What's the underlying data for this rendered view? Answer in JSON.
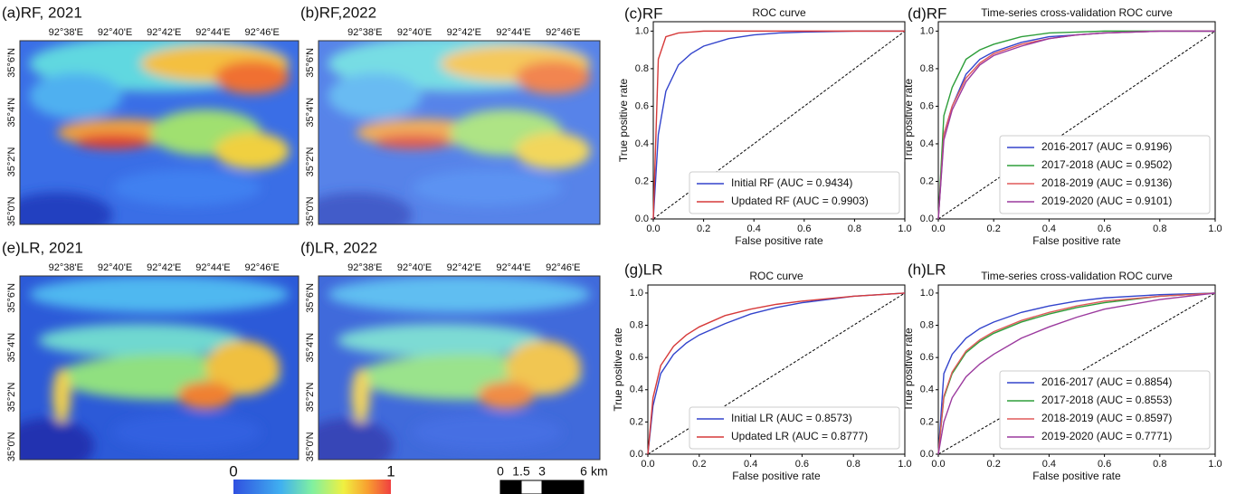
{
  "maps": [
    {
      "label": "(a)RF, 2021",
      "lon_ticks": [
        "92°38'E",
        "92°40'E",
        "92°42'E",
        "92°44'E",
        "92°46'E"
      ],
      "lat_ticks": [
        "35°6'N",
        "35°4'N",
        "35°2'N",
        "35°0'N"
      ]
    },
    {
      "label": "(b)RF,2022",
      "lon_ticks": [
        "92°38'E",
        "92°40'E",
        "92°42'E",
        "92°44'E",
        "92°46'E"
      ],
      "lat_ticks": [
        "35°6'N",
        "35°4'N",
        "35°2'N",
        "35°0'N"
      ]
    },
    {
      "label": "(e)LR, 2021",
      "lon_ticks": [
        "92°38'E",
        "92°40'E",
        "92°42'E",
        "92°44'E",
        "92°46'E"
      ],
      "lat_ticks": [
        "35°6'N",
        "35°4'N",
        "35°2'N",
        "35°0'N"
      ]
    },
    {
      "label": "(f)LR, 2022",
      "lon_ticks": [
        "92°38'E",
        "92°40'E",
        "92°42'E",
        "92°44'E",
        "92°46'E"
      ],
      "lat_ticks": [
        "35°6'N",
        "35°4'N",
        "35°2'N",
        "35°0'N"
      ]
    }
  ],
  "colorbar": {
    "lim": [
      0,
      1
    ],
    "ticks": [
      0,
      1
    ]
  },
  "scalebar": {
    "ticks": [
      0,
      1.5,
      3,
      6
    ],
    "unit": "km"
  },
  "chart_data": [
    {
      "type": "line",
      "panel_label": "(c)RF",
      "title": "ROC curve",
      "x_label": "False positive rate",
      "y_label": "True positive rate",
      "xlim": [
        0,
        1
      ],
      "ylim": [
        0,
        1.05
      ],
      "xticks": [
        {
          "value": 0,
          "label": "0.0"
        },
        0.2,
        0.4,
        0.6,
        0.8,
        {
          "value": 1,
          "label": "1.0"
        }
      ],
      "yticks": [
        {
          "value": 0,
          "label": "0.0"
        },
        0.2,
        0.4,
        0.6,
        0.8,
        {
          "value": 1,
          "label": "1.0"
        }
      ],
      "series": [
        {
          "name": "Initial RF (AUC = 0.9434)",
          "color": "#3344cc",
          "x": [
            0,
            0.02,
            0.05,
            0.1,
            0.15,
            0.2,
            0.3,
            0.4,
            0.5,
            0.6,
            0.8,
            1
          ],
          "values": [
            0,
            0.45,
            0.68,
            0.82,
            0.88,
            0.92,
            0.96,
            0.98,
            0.99,
            0.995,
            1,
            1
          ]
        },
        {
          "name": "Updated RF (AUC = 0.9903)",
          "color": "#d63a3a",
          "x": [
            0,
            0.02,
            0.05,
            0.1,
            0.15,
            0.2,
            0.3,
            0.4,
            0.5,
            0.6,
            0.8,
            1
          ],
          "values": [
            0,
            0.85,
            0.97,
            0.99,
            0.995,
            1,
            1,
            1,
            1,
            1,
            1,
            1
          ]
        }
      ]
    },
    {
      "type": "line",
      "panel_label": "(d)RF",
      "title": "Time-series cross-validation ROC curve",
      "x_label": "False positive rate",
      "y_label": "True positive rate",
      "xlim": [
        0,
        1
      ],
      "ylim": [
        0,
        1.05
      ],
      "xticks": [
        {
          "value": 0,
          "label": "0.0"
        },
        0.2,
        0.4,
        0.6,
        0.8,
        {
          "value": 1,
          "label": "1.0"
        }
      ],
      "yticks": [
        {
          "value": 0,
          "label": "0.0"
        },
        0.2,
        0.4,
        0.6,
        0.8,
        {
          "value": 1,
          "label": "1.0"
        }
      ],
      "series": [
        {
          "name": "2016-2017 (AUC = 0.9196)",
          "color": "#3344cc",
          "x": [
            0,
            0.02,
            0.05,
            0.1,
            0.15,
            0.2,
            0.3,
            0.4,
            0.5,
            0.6,
            0.8,
            1
          ],
          "values": [
            0,
            0.45,
            0.6,
            0.77,
            0.85,
            0.89,
            0.94,
            0.97,
            0.98,
            0.99,
            1,
            1
          ]
        },
        {
          "name": "2017-2018 (AUC = 0.9502)",
          "color": "#2e9e3a",
          "x": [
            0,
            0.02,
            0.05,
            0.1,
            0.15,
            0.2,
            0.3,
            0.4,
            0.5,
            0.6,
            0.8,
            1
          ],
          "values": [
            0,
            0.55,
            0.7,
            0.85,
            0.9,
            0.93,
            0.97,
            0.99,
            0.995,
            1,
            1,
            1
          ]
        },
        {
          "name": "2018-2019 (AUC = 0.9136)",
          "color": "#e05a5a",
          "x": [
            0,
            0.02,
            0.05,
            0.1,
            0.15,
            0.2,
            0.3,
            0.4,
            0.5,
            0.6,
            0.8,
            1
          ],
          "values": [
            0,
            0.45,
            0.6,
            0.75,
            0.83,
            0.88,
            0.93,
            0.96,
            0.98,
            0.99,
            1,
            1
          ]
        },
        {
          "name": "2019-2020 (AUC = 0.9101)",
          "color": "#9b3a9e",
          "x": [
            0,
            0.02,
            0.05,
            0.1,
            0.15,
            0.2,
            0.3,
            0.4,
            0.5,
            0.6,
            0.8,
            1
          ],
          "values": [
            0,
            0.42,
            0.58,
            0.73,
            0.82,
            0.87,
            0.92,
            0.96,
            0.98,
            0.99,
            1,
            1
          ]
        }
      ]
    },
    {
      "type": "line",
      "panel_label": "(g)LR",
      "title": "ROC curve",
      "x_label": "False positive rate",
      "y_label": "True positive rate",
      "xlim": [
        0,
        1
      ],
      "ylim": [
        0,
        1.05
      ],
      "xticks": [
        {
          "value": 0,
          "label": "0.0"
        },
        0.2,
        0.4,
        0.6,
        0.8,
        {
          "value": 1,
          "label": "1.0"
        }
      ],
      "yticks": [
        {
          "value": 0,
          "label": "0.0"
        },
        0.2,
        0.4,
        0.6,
        0.8,
        {
          "value": 1,
          "label": "1.0"
        }
      ],
      "series": [
        {
          "name": "Initial LR (AUC = 0.8573)",
          "color": "#3344cc",
          "x": [
            0,
            0.02,
            0.05,
            0.1,
            0.15,
            0.2,
            0.3,
            0.4,
            0.5,
            0.6,
            0.8,
            1
          ],
          "values": [
            0,
            0.3,
            0.5,
            0.62,
            0.69,
            0.74,
            0.81,
            0.87,
            0.91,
            0.94,
            0.98,
            1
          ]
        },
        {
          "name": "Updated LR (AUC = 0.8777)",
          "color": "#d63a3a",
          "x": [
            0,
            0.02,
            0.05,
            0.1,
            0.15,
            0.2,
            0.3,
            0.4,
            0.5,
            0.6,
            0.8,
            1
          ],
          "values": [
            0,
            0.35,
            0.55,
            0.67,
            0.74,
            0.79,
            0.86,
            0.9,
            0.93,
            0.95,
            0.98,
            1
          ]
        }
      ]
    },
    {
      "type": "line",
      "panel_label": "(h)LR",
      "title": "Time-series cross-validation ROC curve",
      "x_label": "False positive rate",
      "y_label": "True positive rate",
      "xlim": [
        0,
        1
      ],
      "ylim": [
        0,
        1.05
      ],
      "xticks": [
        {
          "value": 0,
          "label": "0.0"
        },
        0.2,
        0.4,
        0.6,
        0.8,
        {
          "value": 1,
          "label": "1.0"
        }
      ],
      "yticks": [
        {
          "value": 0,
          "label": "0.0"
        },
        0.2,
        0.4,
        0.6,
        0.8,
        {
          "value": 1,
          "label": "1.0"
        }
      ],
      "series": [
        {
          "name": "2016-2017 (AUC = 0.8854)",
          "color": "#3344cc",
          "x": [
            0,
            0.02,
            0.05,
            0.1,
            0.15,
            0.2,
            0.3,
            0.4,
            0.5,
            0.6,
            0.8,
            1
          ],
          "values": [
            0,
            0.5,
            0.62,
            0.72,
            0.78,
            0.82,
            0.88,
            0.92,
            0.95,
            0.97,
            0.99,
            1
          ]
        },
        {
          "name": "2017-2018 (AUC = 0.8553)",
          "color": "#2e9e3a",
          "x": [
            0,
            0.02,
            0.05,
            0.1,
            0.15,
            0.2,
            0.3,
            0.4,
            0.5,
            0.6,
            0.8,
            1
          ],
          "values": [
            0,
            0.35,
            0.5,
            0.63,
            0.7,
            0.75,
            0.82,
            0.87,
            0.91,
            0.94,
            0.98,
            1
          ]
        },
        {
          "name": "2018-2019 (AUC = 0.8597)",
          "color": "#e05a5a",
          "x": [
            0,
            0.02,
            0.05,
            0.1,
            0.15,
            0.2,
            0.3,
            0.4,
            0.5,
            0.6,
            0.8,
            1
          ],
          "values": [
            0,
            0.36,
            0.51,
            0.64,
            0.71,
            0.76,
            0.83,
            0.88,
            0.92,
            0.95,
            0.98,
            1
          ]
        },
        {
          "name": "2019-2020 (AUC = 0.7771)",
          "color": "#9b3a9e",
          "x": [
            0,
            0.02,
            0.05,
            0.1,
            0.15,
            0.2,
            0.3,
            0.4,
            0.5,
            0.6,
            0.8,
            1
          ],
          "values": [
            0,
            0.2,
            0.35,
            0.48,
            0.56,
            0.62,
            0.72,
            0.79,
            0.85,
            0.9,
            0.96,
            1
          ]
        }
      ]
    }
  ]
}
